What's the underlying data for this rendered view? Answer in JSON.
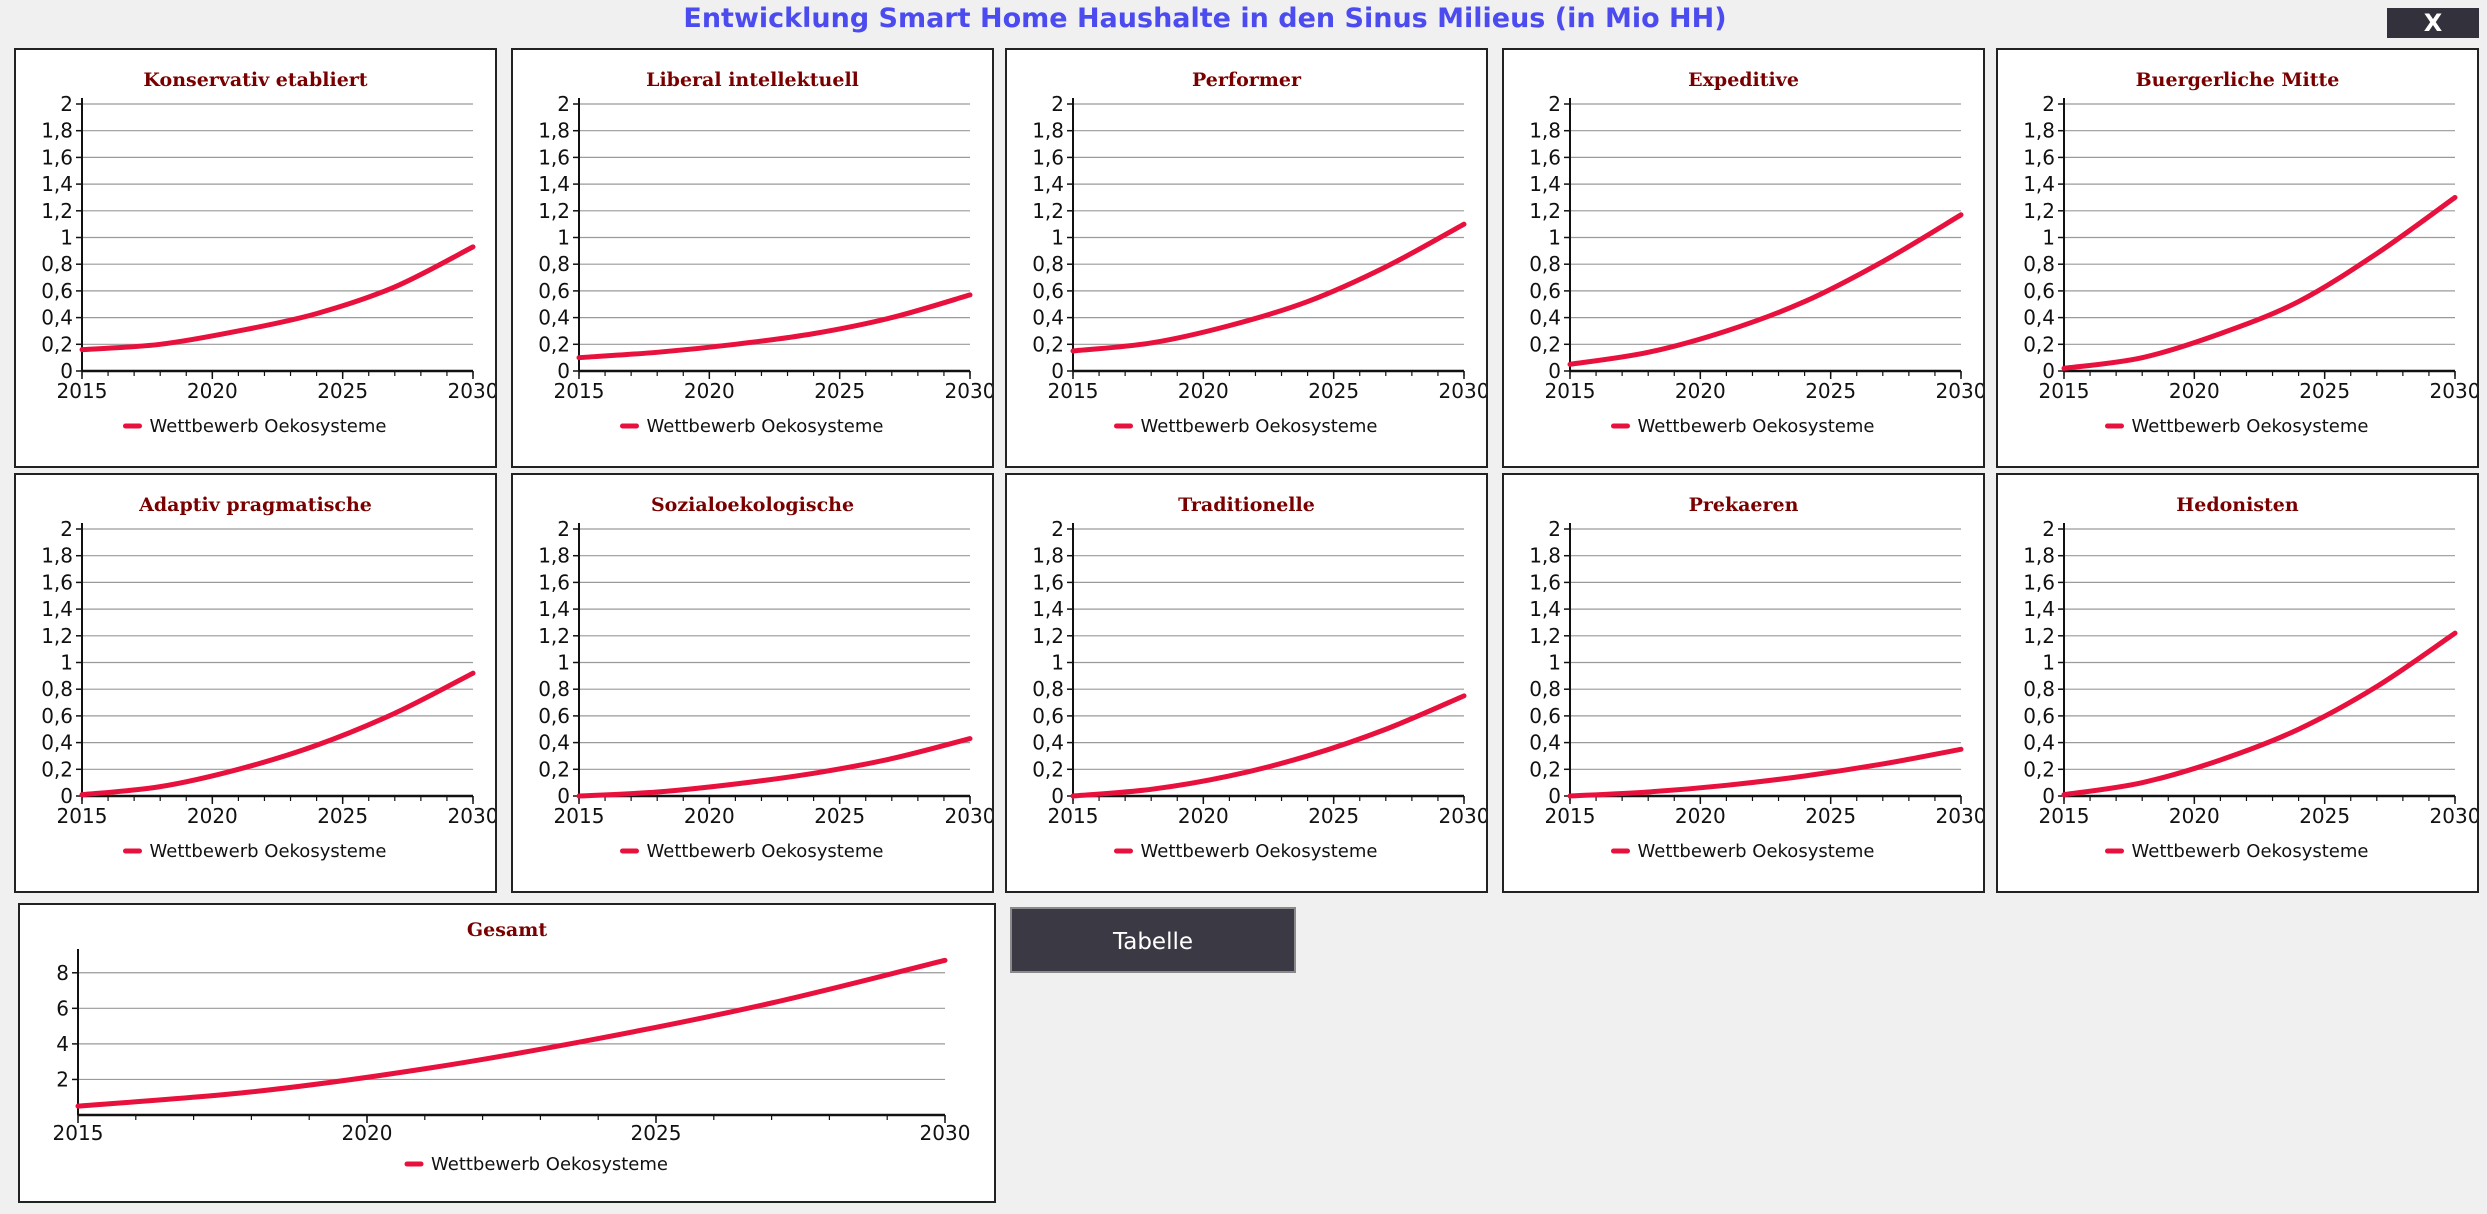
{
  "window": {
    "title": "Entwicklung Smart Home Haushalte in den Sinus Milieus (in Mio HH)",
    "close_label": "X",
    "table_button_label": "Tabelle"
  },
  "colors": {
    "series": "#e8103c",
    "title": "#7a0000",
    "heading": "#4b4bf0"
  },
  "chart_data": [
    {
      "type": "line",
      "title": "Konservativ etabliert",
      "ylim": [
        0,
        2
      ],
      "yticks": [
        "0",
        "0,2",
        "0,4",
        "0,6",
        "0,8",
        "1",
        "1,2",
        "1,4",
        "1,6",
        "1,8",
        "2"
      ],
      "xticks": [
        "2015",
        "2020",
        "2025",
        "2030"
      ],
      "grid": true,
      "legend": "bottom",
      "series": [
        {
          "name": "Wettbewerb Oekosysteme",
          "x": [
            2015,
            2018,
            2021,
            2024,
            2027,
            2030
          ],
          "values": [
            0.16,
            0.2,
            0.3,
            0.43,
            0.63,
            0.93
          ]
        }
      ]
    },
    {
      "type": "line",
      "title": "Liberal intellektuell",
      "ylim": [
        0,
        2
      ],
      "yticks": [
        "0",
        "0,2",
        "0,4",
        "0,6",
        "0,8",
        "1",
        "1,2",
        "1,4",
        "1,6",
        "1,8",
        "2"
      ],
      "xticks": [
        "2015",
        "2020",
        "2025",
        "2030"
      ],
      "grid": true,
      "legend": "bottom",
      "series": [
        {
          "name": "Wettbewerb Oekosysteme",
          "x": [
            2015,
            2018,
            2021,
            2024,
            2027,
            2030
          ],
          "values": [
            0.1,
            0.14,
            0.2,
            0.28,
            0.4,
            0.57
          ]
        }
      ]
    },
    {
      "type": "line",
      "title": "Performer",
      "ylim": [
        0,
        2
      ],
      "yticks": [
        "0",
        "0,2",
        "0,4",
        "0,6",
        "0,8",
        "1",
        "1,2",
        "1,4",
        "1,6",
        "1,8",
        "2"
      ],
      "xticks": [
        "2015",
        "2020",
        "2025",
        "2030"
      ],
      "grid": true,
      "legend": "bottom",
      "series": [
        {
          "name": "Wettbewerb Oekosysteme",
          "x": [
            2015,
            2018,
            2021,
            2024,
            2027,
            2030
          ],
          "values": [
            0.15,
            0.21,
            0.34,
            0.52,
            0.78,
            1.1
          ]
        }
      ]
    },
    {
      "type": "line",
      "title": "Expeditive",
      "ylim": [
        0,
        2
      ],
      "yticks": [
        "0",
        "0,2",
        "0,4",
        "0,6",
        "0,8",
        "1",
        "1,2",
        "1,4",
        "1,6",
        "1,8",
        "2"
      ],
      "xticks": [
        "2015",
        "2020",
        "2025",
        "2030"
      ],
      "grid": true,
      "legend": "bottom",
      "series": [
        {
          "name": "Wettbewerb Oekosysteme",
          "x": [
            2015,
            2018,
            2021,
            2024,
            2027,
            2030
          ],
          "values": [
            0.05,
            0.14,
            0.3,
            0.52,
            0.82,
            1.17
          ]
        }
      ]
    },
    {
      "type": "line",
      "title": "Buergerliche Mitte",
      "ylim": [
        0,
        2
      ],
      "yticks": [
        "0",
        "0,2",
        "0,4",
        "0,6",
        "0,8",
        "1",
        "1,2",
        "1,4",
        "1,6",
        "1,8",
        "2"
      ],
      "xticks": [
        "2015",
        "2020",
        "2025",
        "2030"
      ],
      "grid": true,
      "legend": "bottom",
      "series": [
        {
          "name": "Wettbewerb Oekosysteme",
          "x": [
            2015,
            2018,
            2021,
            2024,
            2027,
            2030
          ],
          "values": [
            0.02,
            0.1,
            0.28,
            0.52,
            0.88,
            1.3
          ]
        }
      ]
    },
    {
      "type": "line",
      "title": "Adaptiv pragmatische",
      "ylim": [
        0,
        2
      ],
      "yticks": [
        "0",
        "0,2",
        "0,4",
        "0,6",
        "0,8",
        "1",
        "1,2",
        "1,4",
        "1,6",
        "1,8",
        "2"
      ],
      "xticks": [
        "2015",
        "2020",
        "2025",
        "2030"
      ],
      "grid": true,
      "legend": "bottom",
      "series": [
        {
          "name": "Wettbewerb Oekosysteme",
          "x": [
            2015,
            2018,
            2021,
            2024,
            2027,
            2030
          ],
          "values": [
            0.01,
            0.07,
            0.2,
            0.38,
            0.62,
            0.92
          ]
        }
      ]
    },
    {
      "type": "line",
      "title": "Sozialoekologische",
      "ylim": [
        0,
        2
      ],
      "yticks": [
        "0",
        "0,2",
        "0,4",
        "0,6",
        "0,8",
        "1",
        "1,2",
        "1,4",
        "1,6",
        "1,8",
        "2"
      ],
      "xticks": [
        "2015",
        "2020",
        "2025",
        "2030"
      ],
      "grid": true,
      "legend": "bottom",
      "series": [
        {
          "name": "Wettbewerb Oekosysteme",
          "x": [
            2015,
            2018,
            2021,
            2024,
            2027,
            2030
          ],
          "values": [
            0.0,
            0.03,
            0.09,
            0.17,
            0.28,
            0.43
          ]
        }
      ]
    },
    {
      "type": "line",
      "title": "Traditionelle",
      "ylim": [
        0,
        2
      ],
      "yticks": [
        "0",
        "0,2",
        "0,4",
        "0,6",
        "0,8",
        "1",
        "1,2",
        "1,4",
        "1,6",
        "1,8",
        "2"
      ],
      "xticks": [
        "2015",
        "2020",
        "2025",
        "2030"
      ],
      "grid": true,
      "legend": "bottom",
      "series": [
        {
          "name": "Wettbewerb Oekosysteme",
          "x": [
            2015,
            2018,
            2021,
            2024,
            2027,
            2030
          ],
          "values": [
            0.0,
            0.05,
            0.15,
            0.3,
            0.5,
            0.75
          ]
        }
      ]
    },
    {
      "type": "line",
      "title": "Prekaeren",
      "ylim": [
        0,
        2
      ],
      "yticks": [
        "0",
        "0,2",
        "0,4",
        "0,6",
        "0,8",
        "1",
        "1,2",
        "1,4",
        "1,6",
        "1,8",
        "2"
      ],
      "xticks": [
        "2015",
        "2020",
        "2025",
        "2030"
      ],
      "grid": true,
      "legend": "bottom",
      "series": [
        {
          "name": "Wettbewerb Oekosysteme",
          "x": [
            2015,
            2018,
            2021,
            2024,
            2027,
            2030
          ],
          "values": [
            0.0,
            0.03,
            0.08,
            0.15,
            0.24,
            0.35
          ]
        }
      ]
    },
    {
      "type": "line",
      "title": "Hedonisten",
      "ylim": [
        0,
        2
      ],
      "yticks": [
        "0",
        "0,2",
        "0,4",
        "0,6",
        "0,8",
        "1",
        "1,2",
        "1,4",
        "1,6",
        "1,8",
        "2"
      ],
      "xticks": [
        "2015",
        "2020",
        "2025",
        "2030"
      ],
      "grid": true,
      "legend": "bottom",
      "series": [
        {
          "name": "Wettbewerb Oekosysteme",
          "x": [
            2015,
            2018,
            2021,
            2024,
            2027,
            2030
          ],
          "values": [
            0.01,
            0.1,
            0.27,
            0.5,
            0.82,
            1.22
          ]
        }
      ]
    },
    {
      "type": "line",
      "title": "Gesamt",
      "ylim": [
        0,
        9
      ],
      "yticks": [
        "2",
        "4",
        "6",
        "8"
      ],
      "ytick_values": [
        2,
        4,
        6,
        8
      ],
      "xticks": [
        "2015",
        "2020",
        "2025",
        "2030"
      ],
      "grid": true,
      "legend": "bottom",
      "series": [
        {
          "name": "Wettbewerb Oekosysteme",
          "x": [
            2015,
            2018,
            2021,
            2024,
            2027,
            2030
          ],
          "values": [
            0.5,
            1.3,
            2.6,
            4.3,
            6.3,
            8.7
          ]
        }
      ]
    }
  ]
}
